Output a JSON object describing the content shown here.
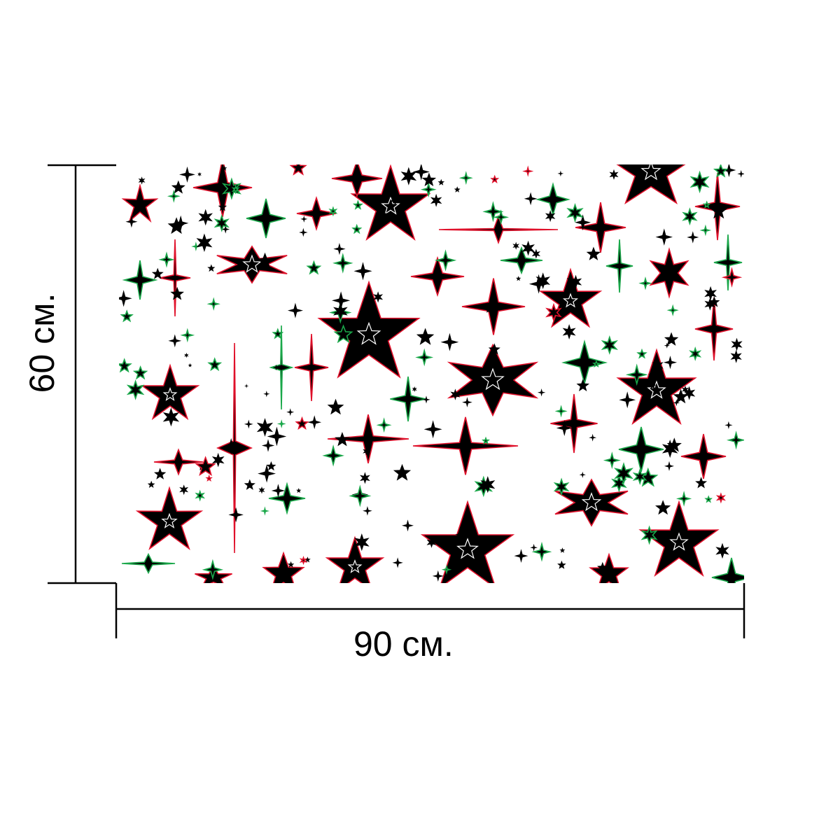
{
  "dimensions": {
    "width_label": "90 см.",
    "height_label": "60 см."
  },
  "colors": {
    "star_fill": "#000000",
    "outline_red": "#e0102a",
    "outline_green": "#1aa84a",
    "inner_outline": "#ffffff",
    "background": "#ffffff",
    "dimension_line": "#000000"
  },
  "pattern": {
    "motif": "star-icon",
    "description_visible": false
  }
}
